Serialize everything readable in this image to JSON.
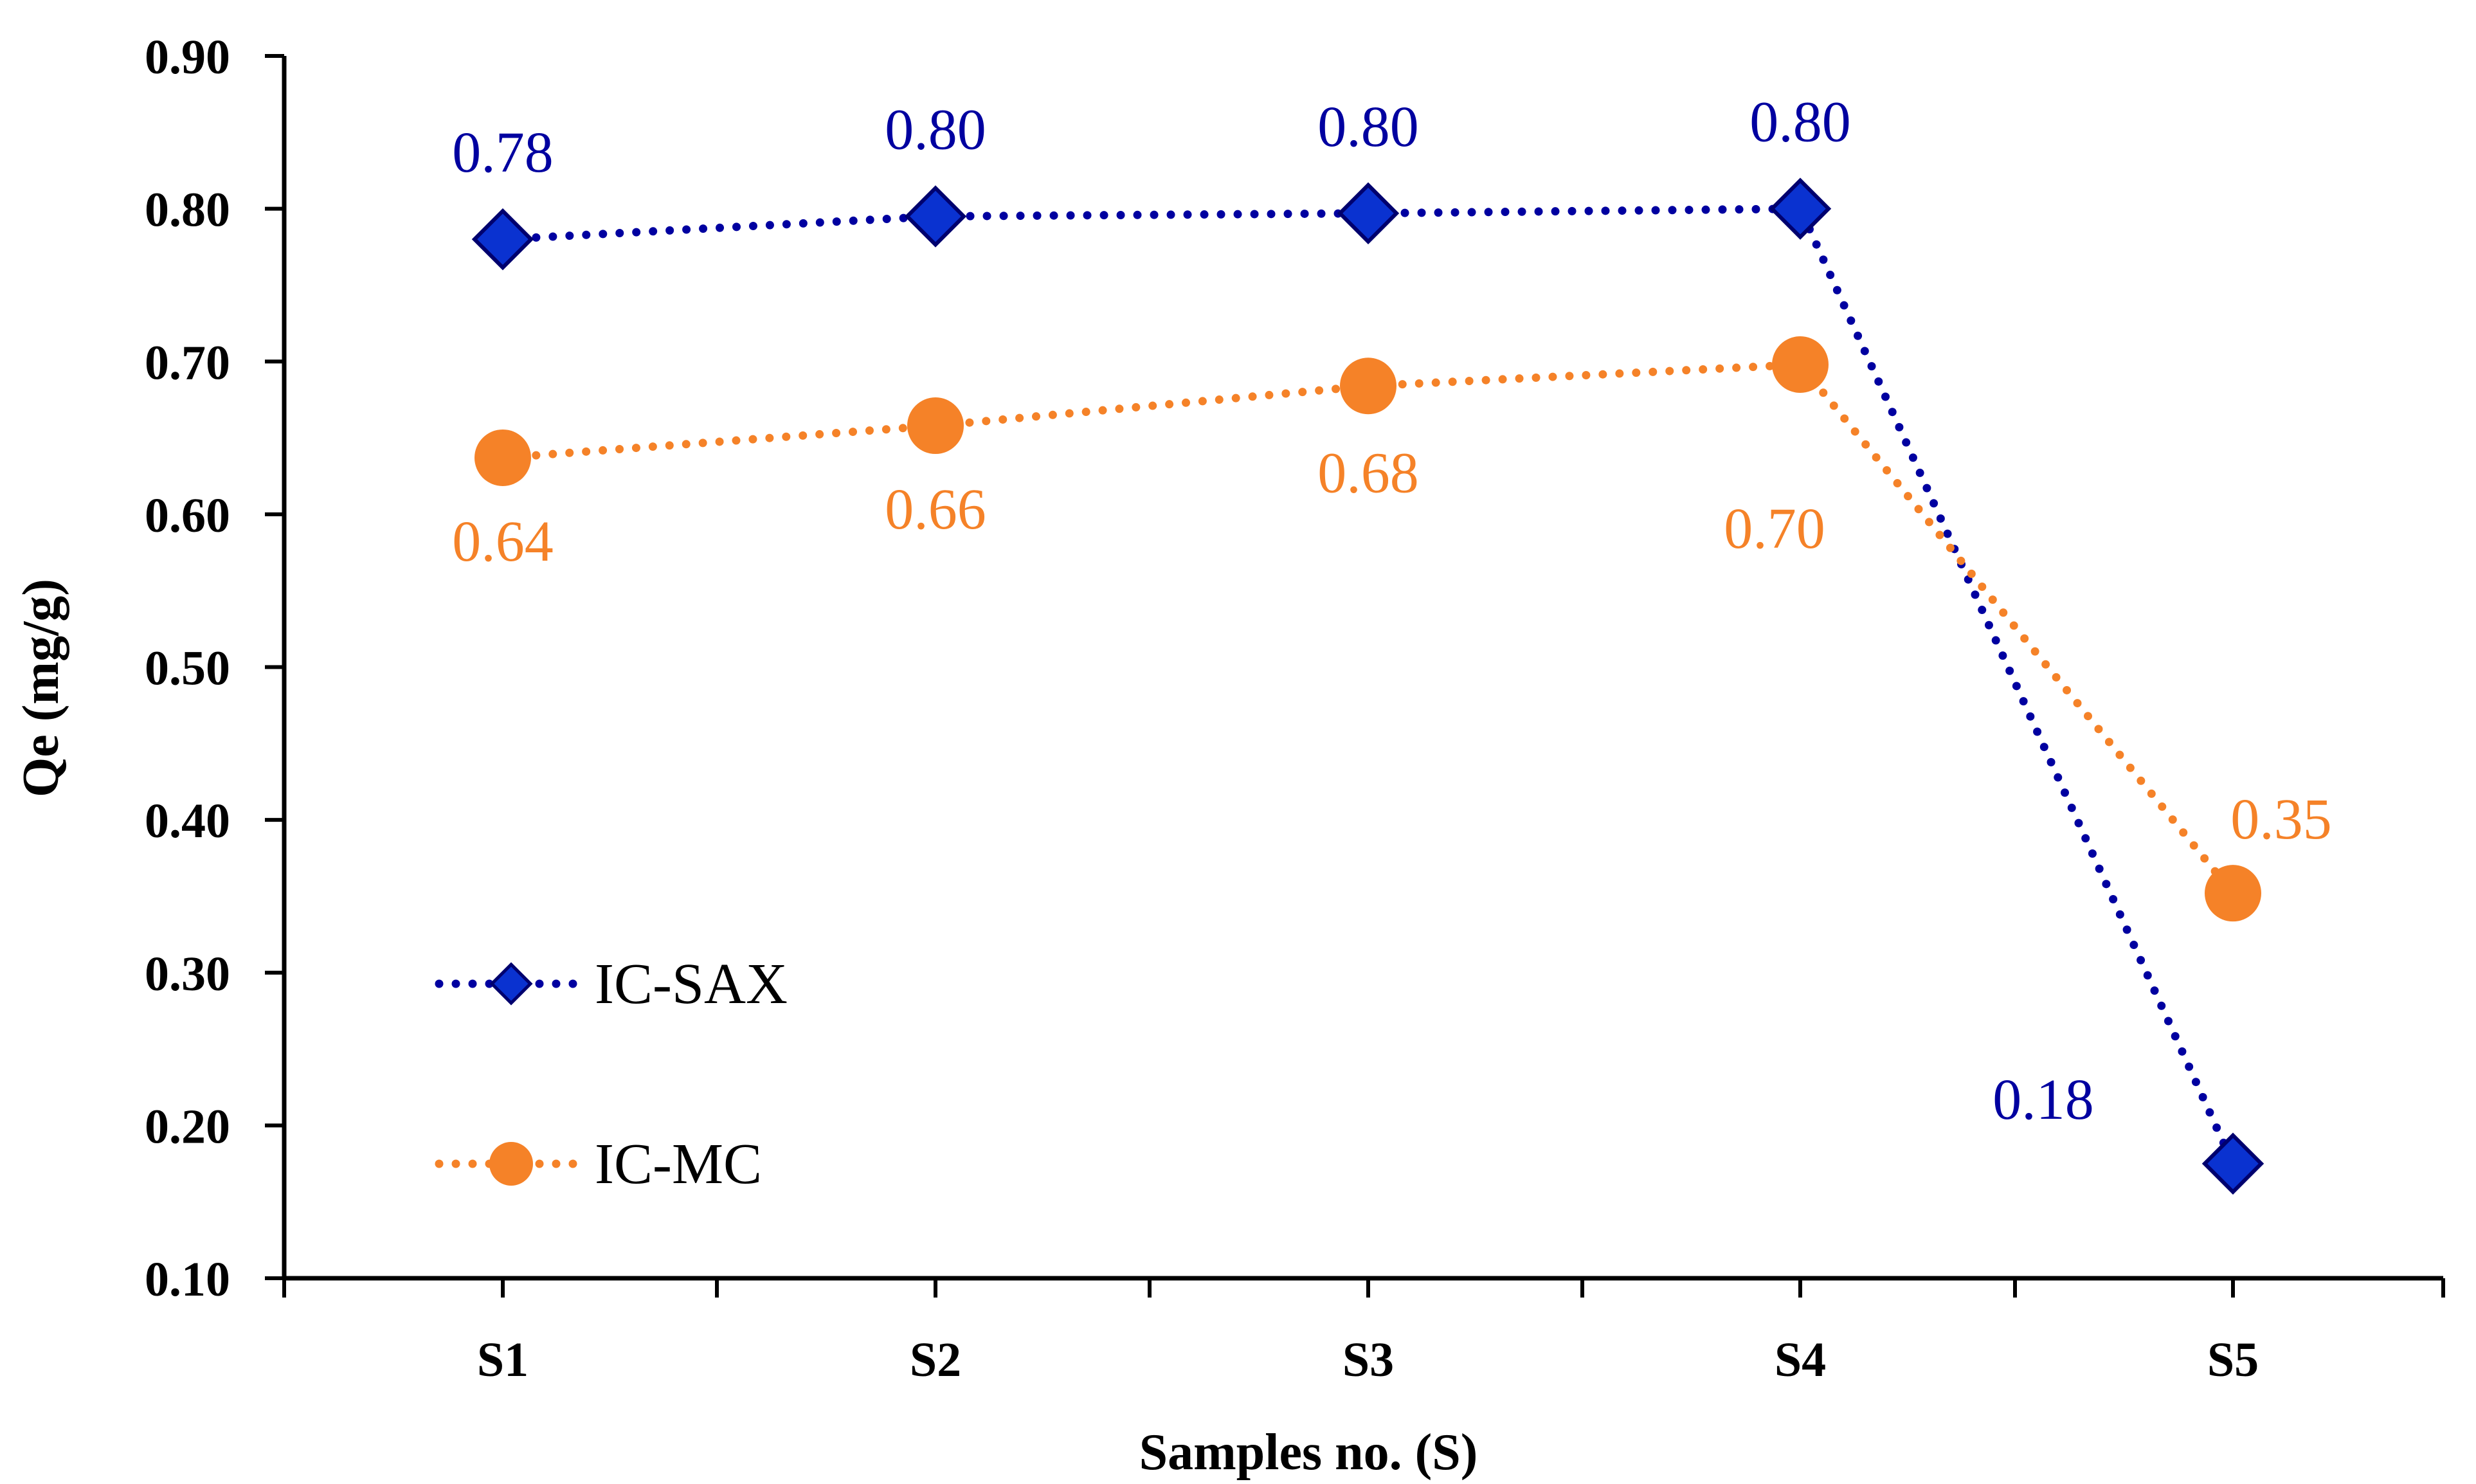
{
  "chart_data": {
    "type": "line",
    "categories": [
      "S1",
      "S2",
      "S3",
      "S4",
      "S5"
    ],
    "xlabel": "Samples no. (S)",
    "ylabel": "Qe (mg/g)",
    "ylim": [
      0.1,
      0.9
    ],
    "yticks": [
      "0.10",
      "0.20",
      "0.30",
      "0.40",
      "0.50",
      "0.60",
      "0.70",
      "0.80",
      "0.90"
    ],
    "grid": false,
    "legend_position": "left",
    "series": [
      {
        "name": "IC-SAX",
        "values": [
          0.78,
          0.795,
          0.797,
          0.8,
          0.175
        ],
        "labels": [
          "0.78",
          "0.80",
          "0.80",
          "0.80",
          "0.18"
        ],
        "color": "#0000A0",
        "marker": "diamond",
        "line_style": "dotted"
      },
      {
        "name": "IC-MC",
        "values": [
          0.637,
          0.658,
          0.684,
          0.698,
          0.352
        ],
        "labels": [
          "0.64",
          "0.66",
          "0.68",
          "0.70",
          "0.35"
        ],
        "color": "#F58228",
        "marker": "circle",
        "line_style": "dotted"
      }
    ]
  }
}
